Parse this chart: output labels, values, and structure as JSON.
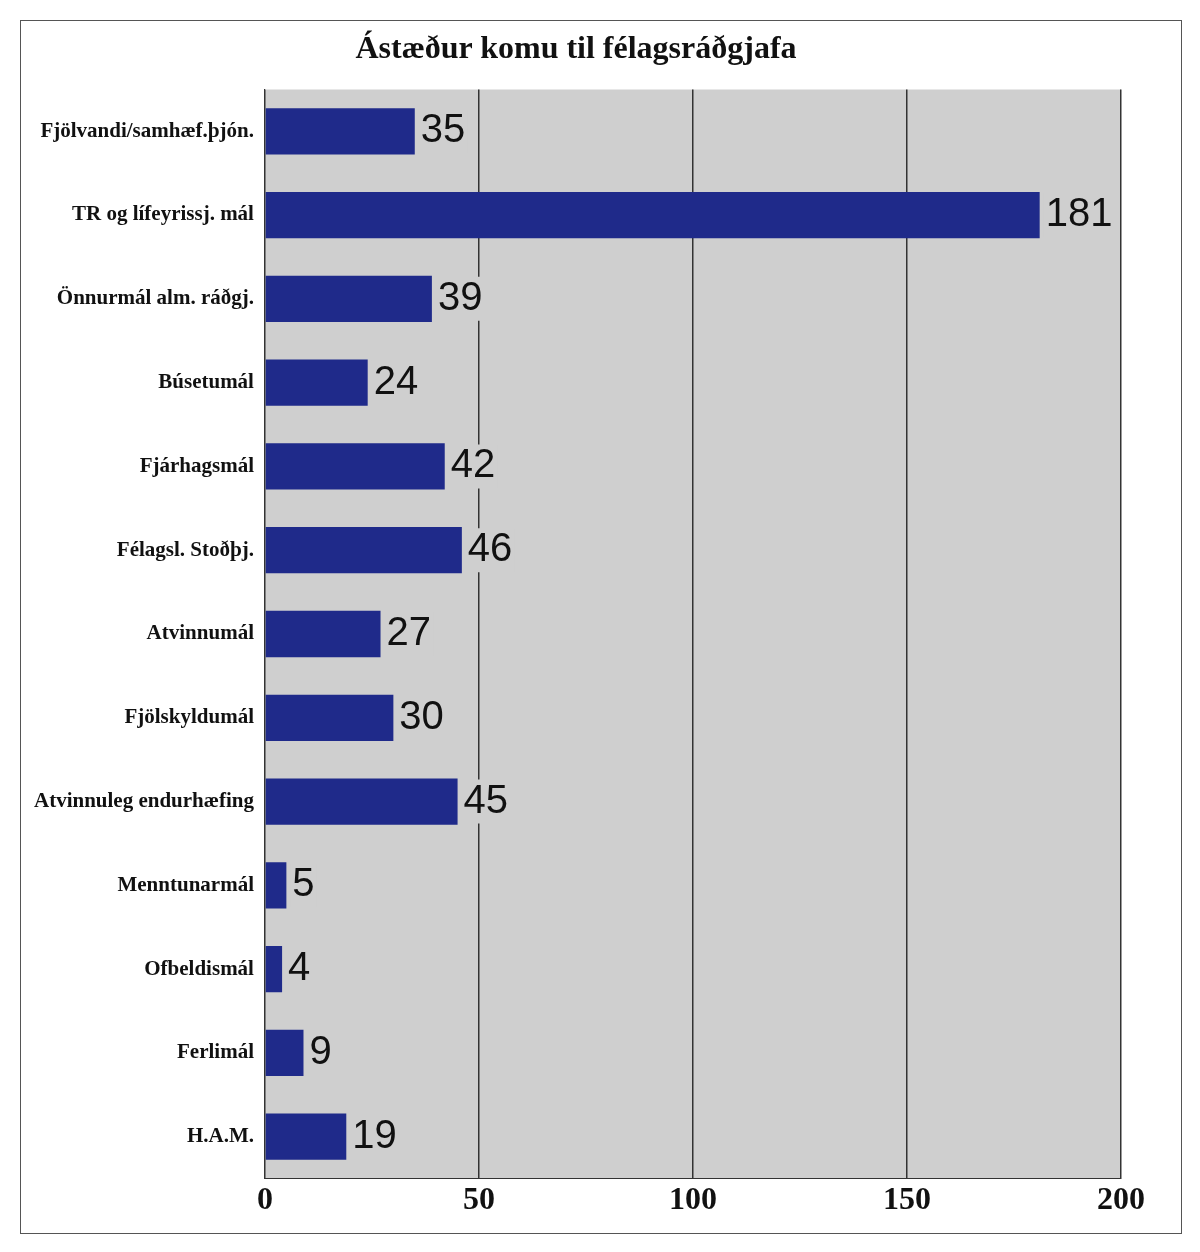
{
  "chart_data": {
    "type": "bar",
    "orientation": "horizontal",
    "title": "Ástæður komu til félagsráðgjafa",
    "categories": [
      "Fjölvandi/samhæf.þjón.",
      "TR og lífeyrissj. mál",
      "Önnurmál alm. ráðgj.",
      "Búsetumál",
      "Fjárhagsmál",
      "Félagsl. Stoðþj.",
      "Atvinnumál",
      "Fjölskyldumál",
      "Atvinnuleg endurhæfing",
      "Menntunarmál",
      "Ofbeldismál",
      "Ferlimál",
      "H.A.M."
    ],
    "values": [
      35,
      181,
      39,
      24,
      42,
      46,
      27,
      30,
      45,
      5,
      4,
      9,
      19
    ],
    "color": "#1f2a8a",
    "xlim": [
      0,
      200
    ],
    "xticks": [
      0,
      50,
      100,
      150,
      200
    ],
    "grid": "x",
    "data_labels": true
  }
}
